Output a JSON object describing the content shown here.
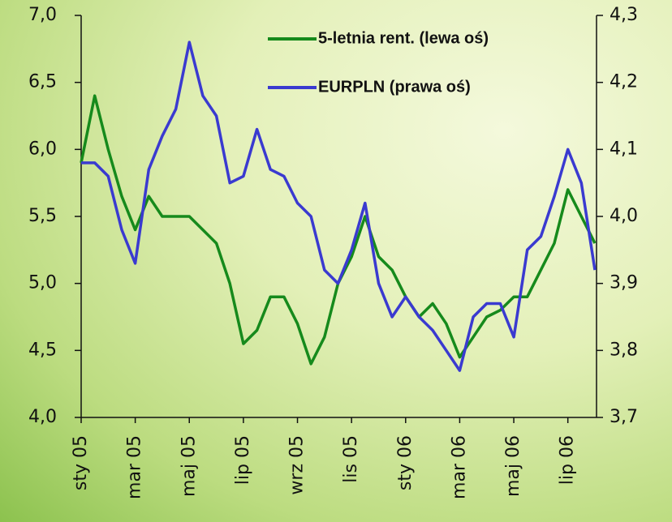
{
  "chart_data": {
    "type": "line",
    "categories": [
      "sty 05",
      null,
      null,
      null,
      "mar 05",
      null,
      null,
      null,
      "maj 05",
      null,
      null,
      null,
      "lip 05",
      null,
      null,
      null,
      "wrz 05",
      null,
      null,
      null,
      "lis 05",
      null,
      null,
      null,
      "sty 06",
      null,
      null,
      null,
      "mar 06",
      null,
      null,
      null,
      "maj 06",
      null,
      null,
      null,
      "lip 06",
      null,
      null
    ],
    "series": [
      {
        "name": "5-letnia rent. (lewa oś)",
        "color": "#168a1c",
        "values": [
          5.9,
          6.4,
          6.0,
          5.65,
          5.4,
          5.65,
          5.5,
          5.5,
          5.5,
          5.4,
          5.3,
          5.0,
          4.55,
          4.65,
          4.9,
          4.9,
          4.7,
          4.4,
          4.6,
          5.0,
          5.2,
          5.5,
          5.2,
          5.1,
          4.9,
          4.75,
          4.85,
          4.7,
          4.45,
          4.6,
          4.75,
          4.8,
          4.9,
          4.9,
          5.1,
          5.3,
          5.7,
          5.5,
          5.3
        ]
      },
      {
        "name": "EURPLN (prawa oś)",
        "color": "#3a3ad0",
        "axis": "y2",
        "values": [
          4.08,
          4.08,
          4.06,
          3.98,
          3.93,
          4.07,
          4.12,
          4.16,
          4.26,
          4.18,
          4.15,
          4.05,
          4.06,
          4.13,
          4.07,
          4.06,
          4.02,
          4.0,
          3.92,
          3.9,
          3.95,
          4.02,
          3.9,
          3.85,
          3.88,
          3.85,
          3.83,
          3.8,
          3.77,
          3.85,
          3.87,
          3.87,
          3.82,
          3.95,
          3.97,
          4.03,
          4.1,
          4.05,
          3.92
        ]
      }
    ],
    "ylim": [
      4.0,
      7.0
    ],
    "yticks": [
      {
        "value": 4.0,
        "label": "4,0"
      },
      {
        "value": 4.5,
        "label": "4,5"
      },
      {
        "value": 5.0,
        "label": "5,0"
      },
      {
        "value": 5.5,
        "label": "5,5"
      },
      {
        "value": 6.0,
        "label": "6,0"
      },
      {
        "value": 6.5,
        "label": "6,5"
      },
      {
        "value": 7.0,
        "label": "7,0"
      }
    ],
    "y2lim": [
      3.7,
      4.3
    ],
    "y2ticks": [
      {
        "value": 3.7,
        "label": "3,7"
      },
      {
        "value": 3.8,
        "label": "3,8"
      },
      {
        "value": 3.9,
        "label": "3,9"
      },
      {
        "value": 4.0,
        "label": "4,0"
      },
      {
        "value": 4.1,
        "label": "4,1"
      },
      {
        "value": 4.2,
        "label": "4,2"
      },
      {
        "value": 4.3,
        "label": "4,3"
      }
    ],
    "legend": "top-right"
  }
}
